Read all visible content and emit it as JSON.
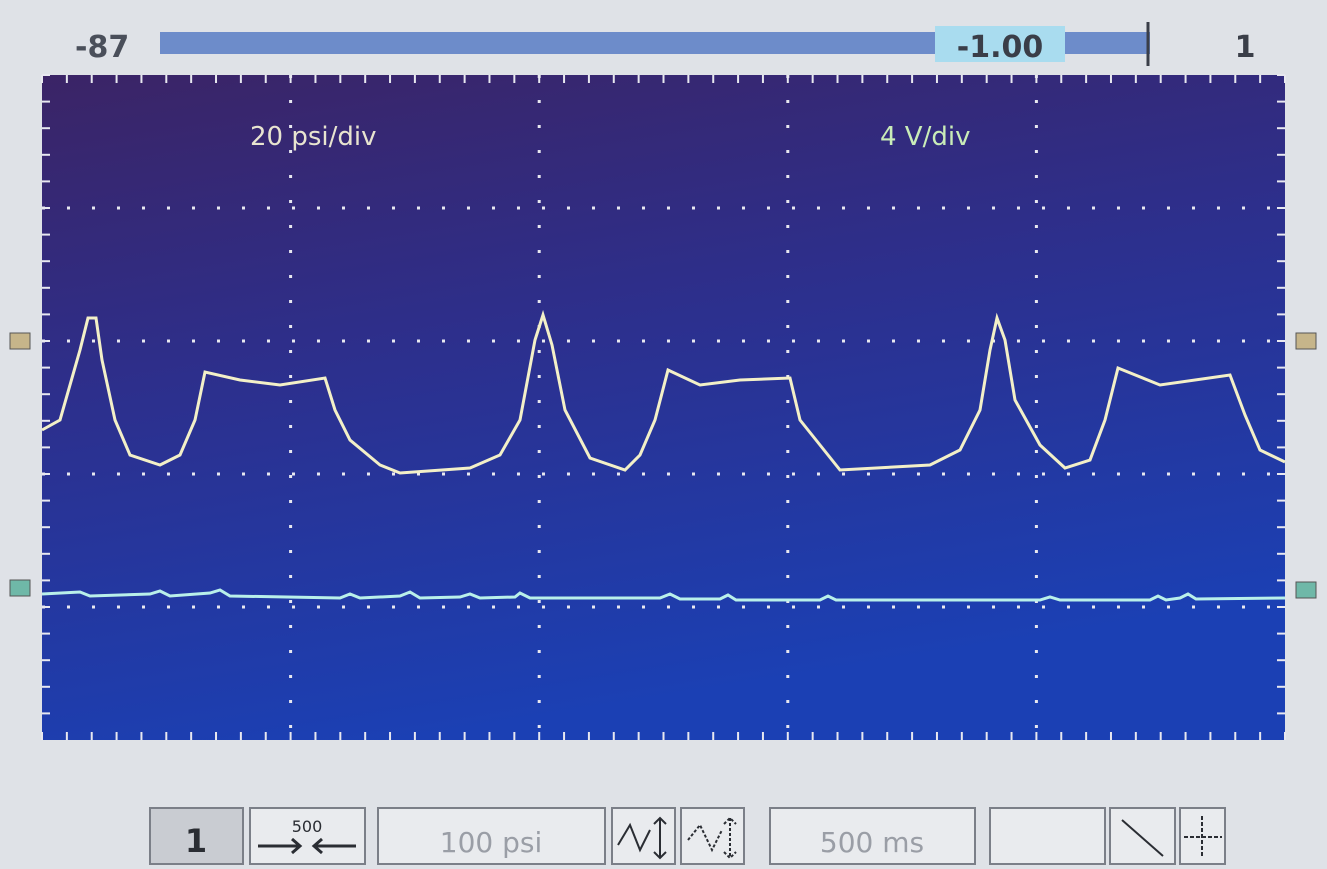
{
  "top_bar": {
    "min": "-87",
    "value": "-1.00",
    "channel": "1"
  },
  "screen": {
    "ch1_scale": "20 psi/div",
    "ch2_scale": "4 V/div"
  },
  "toolbar": {
    "channel": "1",
    "zoom": "500",
    "range": "100 psi",
    "timebase": "500 ms"
  }
}
